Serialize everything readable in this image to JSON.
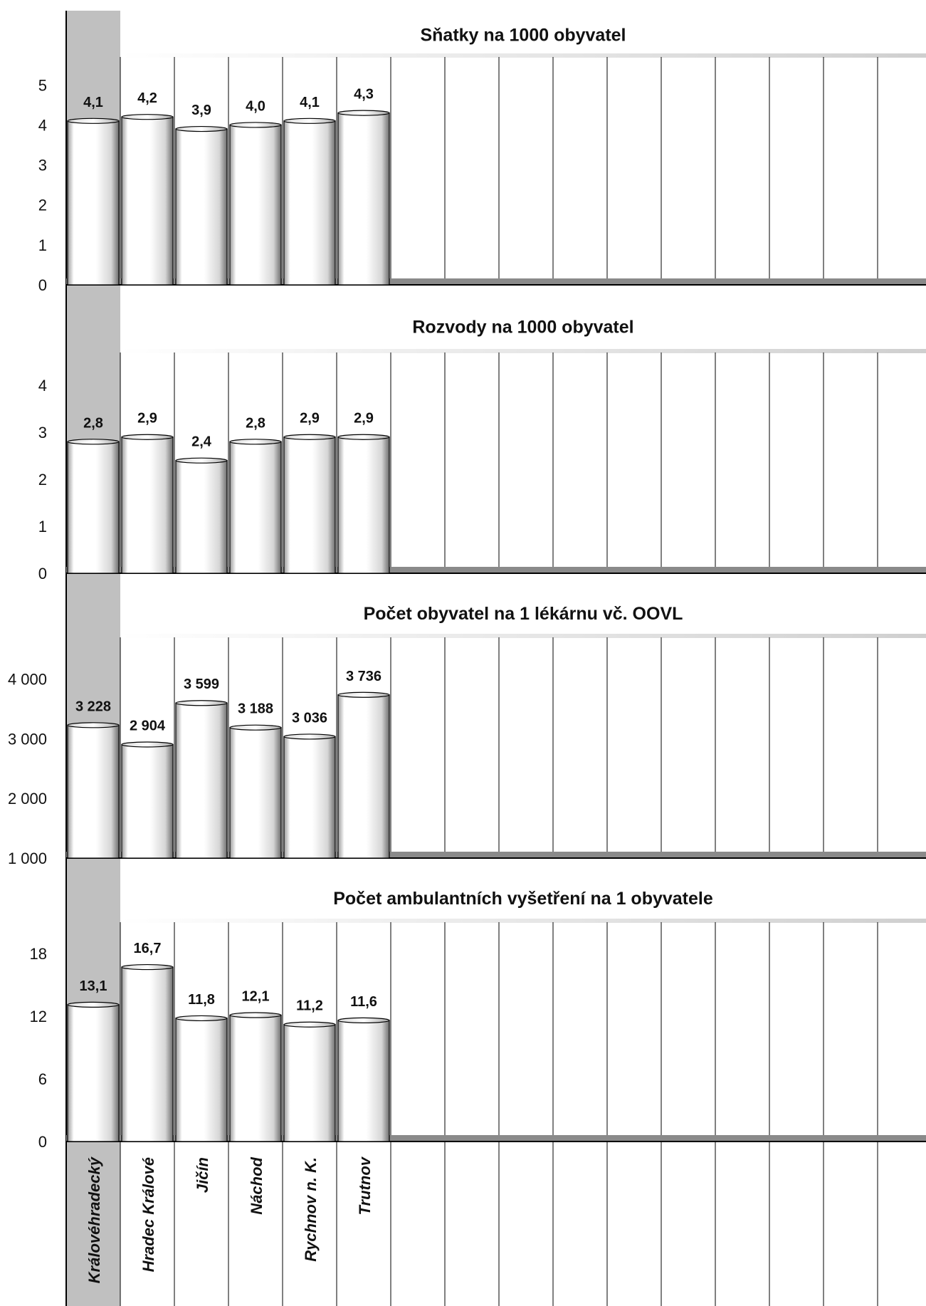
{
  "chart_data": [
    {
      "type": "bar",
      "title": "Sňatky na 1000 obyvatel",
      "categories": [
        "Královéhradecký",
        "Hradec Králové",
        "Jičín",
        "Náchod",
        "Rychnov n. K.",
        "Trutnov"
      ],
      "values": [
        4.1,
        4.2,
        3.9,
        4.0,
        4.1,
        4.3
      ],
      "value_labels": [
        "4,1",
        "4,2",
        "3,9",
        "4,0",
        "4,1",
        "4,3"
      ],
      "yticks": [
        "0",
        "1",
        "2",
        "3",
        "4",
        "5"
      ],
      "ylim": [
        0,
        5.7
      ]
    },
    {
      "type": "bar",
      "title": "Rozvody na 1000 obyvatel",
      "categories": [
        "Královéhradecký",
        "Hradec Králové",
        "Jičín",
        "Náchod",
        "Rychnov n. K.",
        "Trutnov"
      ],
      "values": [
        2.8,
        2.9,
        2.4,
        2.8,
        2.9,
        2.9
      ],
      "value_labels": [
        "2,8",
        "2,9",
        "2,4",
        "2,8",
        "2,9",
        "2,9"
      ],
      "yticks": [
        "0",
        "1",
        "2",
        "3",
        "4"
      ],
      "ylim": [
        0,
        4.7
      ]
    },
    {
      "type": "bar",
      "title": "Počet obyvatel na 1 lékárnu vč. OOVL",
      "categories": [
        "Královéhradecký",
        "Hradec Králové",
        "Jičín",
        "Náchod",
        "Rychnov n. K.",
        "Trutnov"
      ],
      "values": [
        3228,
        2904,
        3599,
        3188,
        3036,
        3736
      ],
      "value_labels": [
        "3 228",
        "2 904",
        "3 599",
        "3 188",
        "3 036",
        "3 736"
      ],
      "yticks": [
        "1 000",
        "2 000",
        "3 000",
        "4 000"
      ],
      "ylim": [
        1000,
        4700
      ]
    },
    {
      "type": "bar",
      "title": "Počet ambulantních vyšetření na 1 obyvatele",
      "categories": [
        "Královéhradecký",
        "Hradec Králové",
        "Jičín",
        "Náchod",
        "Rychnov n. K.",
        "Trutnov"
      ],
      "values": [
        13.1,
        16.7,
        11.8,
        12.1,
        11.2,
        11.6
      ],
      "value_labels": [
        "13,1",
        "16,7",
        "11,8",
        "12,1",
        "11,2",
        "11,6"
      ],
      "yticks": [
        "0",
        "6",
        "12",
        "18"
      ],
      "ylim": [
        0,
        21
      ]
    }
  ],
  "x_axis": {
    "categories": [
      "Královéhradecký",
      "Hradec Králové",
      "Jičín",
      "Náchod",
      "Rychnov n. K.",
      "Trutnov"
    ]
  },
  "colors": {
    "highlight_column": "#c0c0c0",
    "baseline": "#8a8a8a",
    "bar_fill_light": "#ffffff",
    "bar_fill_dark": "#8c8c8c",
    "grid": "#000000"
  }
}
